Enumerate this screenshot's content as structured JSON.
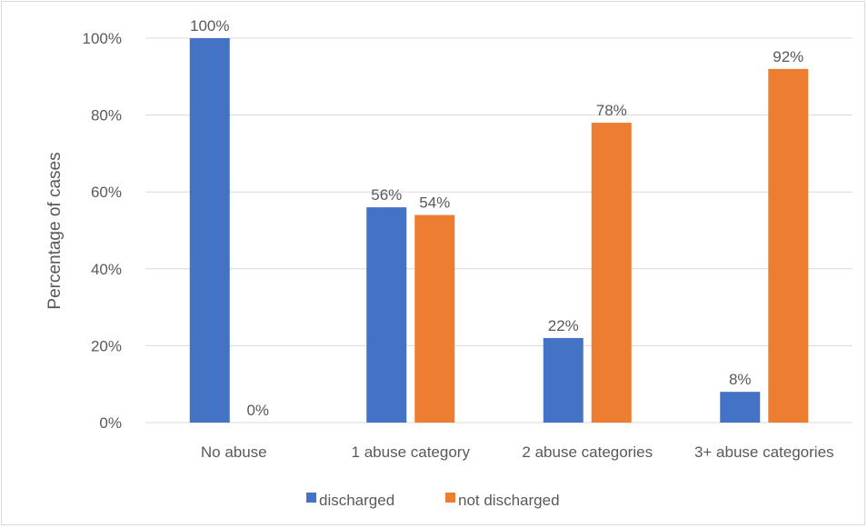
{
  "chart_data": {
    "type": "bar",
    "categories": [
      "No abuse",
      "1 abuse category",
      "2 abuse categories",
      "3+ abuse categories"
    ],
    "series": [
      {
        "name": "discharged",
        "values": [
          100,
          56,
          22,
          8
        ],
        "labels": [
          "100%",
          "56%",
          "22%",
          "8%"
        ],
        "color": "#4472C4"
      },
      {
        "name": "not discharged",
        "values": [
          0,
          54,
          78,
          92
        ],
        "labels": [
          "0%",
          "54%",
          "78%",
          "92%"
        ],
        "color": "#ED7D31"
      }
    ],
    "ylabel": "Percentage of cases",
    "ylim": [
      0,
      100
    ],
    "yticks": [
      0,
      20,
      40,
      60,
      80,
      100
    ],
    "ytick_labels": [
      "0%",
      "20%",
      "40%",
      "60%",
      "80%",
      "100%"
    ],
    "grid": true,
    "legend_position": "bottom",
    "gridline_color": "#d9d9d9"
  }
}
